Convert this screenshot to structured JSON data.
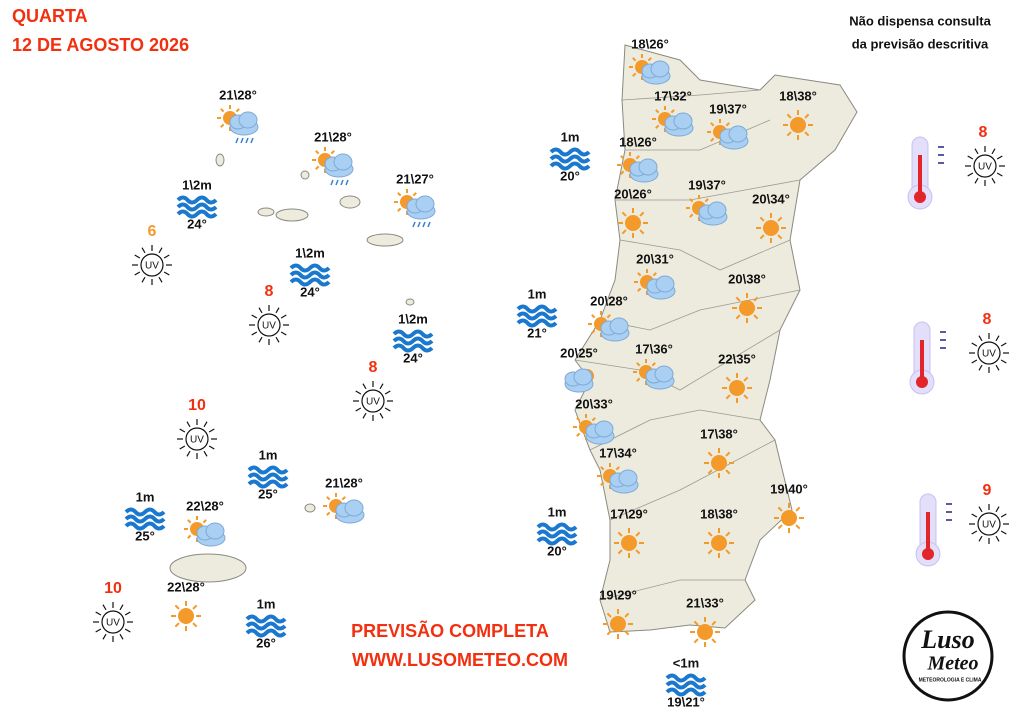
{
  "header": {
    "day": "QUARTA",
    "date": "12 DE AGOSTO 2026"
  },
  "disclaimer": [
    "Não dispensa consulta",
    "da previsão descritiva"
  ],
  "footer": [
    "PREVISÃO COMPLETA",
    "WWW.LUSOMETEO.COM"
  ],
  "logo": {
    "name1": "Luso",
    "name2": "Meteo",
    "tagline": "METEOROLOGIA E CLIMA"
  },
  "uv_symbol": "UV",
  "islands": {
    "temps": [
      "21\\28°",
      "21\\28°",
      "21\\27°",
      "22\\28°",
      "22\\28°",
      "21\\28°"
    ],
    "sea": [
      {
        "wave": "1\\2m",
        "water": "24°"
      },
      {
        "wave": "1\\2m",
        "water": "24°"
      },
      {
        "wave": "1\\2m",
        "water": "24°"
      },
      {
        "wave": "1m",
        "water": "25°"
      },
      {
        "wave": "1m",
        "water": "25°"
      },
      {
        "wave": "1m",
        "water": "26°"
      }
    ],
    "uv": [
      "6",
      "8",
      "8",
      "10",
      "10"
    ]
  },
  "mainland": {
    "temps": [
      "18\\26°",
      "17\\32°",
      "19\\37°",
      "18\\38°",
      "18\\26°",
      "19\\37°",
      "20\\34°",
      "20\\26°",
      "20\\31°",
      "20\\38°",
      "20\\28°",
      "20\\25°",
      "17\\36°",
      "22\\35°",
      "20\\33°",
      "17\\38°",
      "17\\34°",
      "19\\40°",
      "17\\29°",
      "18\\38°",
      "19\\29°",
      "21\\33°"
    ],
    "sea": [
      {
        "wave": "1m",
        "water": "20°"
      },
      {
        "wave": "1m",
        "water": "21°"
      },
      {
        "wave": "1m",
        "water": "20°"
      },
      {
        "wave": "<1m",
        "water": "19\\21°"
      }
    ],
    "uv": [
      "8",
      "8",
      "9"
    ]
  }
}
